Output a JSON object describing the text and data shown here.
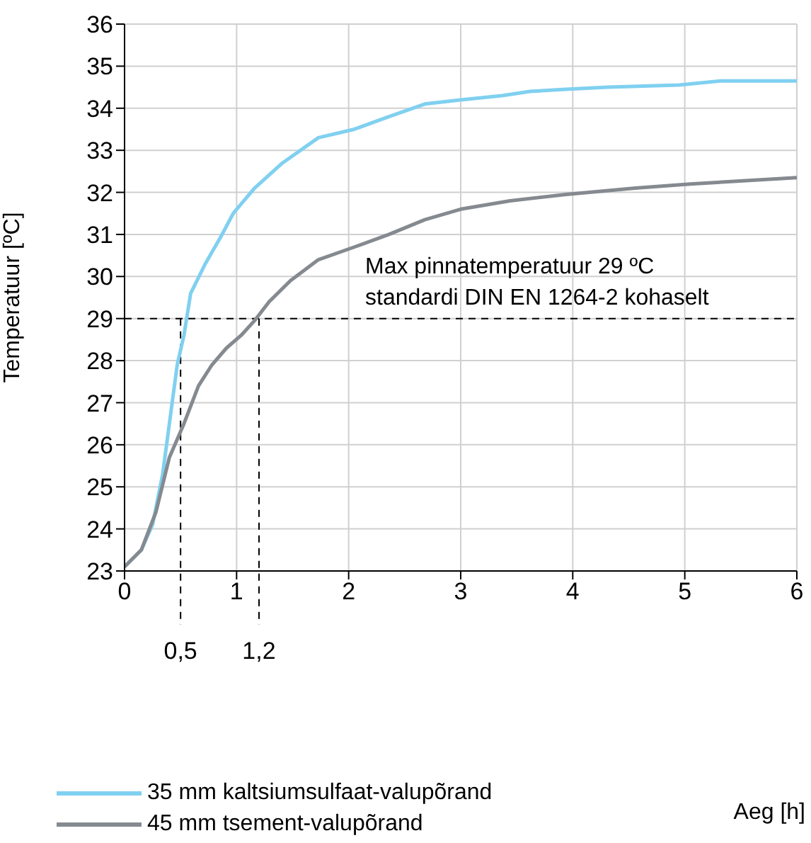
{
  "chart_data": {
    "type": "line",
    "annotations": [
      "Aeg [h]"
    ],
    "ylabel": "Temperatuur [ºC]",
    "xlim": [
      0,
      6
    ],
    "xticks": [
      0,
      1,
      2,
      3,
      4,
      5,
      6
    ],
    "ylim": [
      23,
      36
    ],
    "yticks": [
      23,
      24,
      25,
      26,
      27,
      28,
      29,
      30,
      31,
      32,
      33,
      34,
      35,
      36
    ],
    "grid": true,
    "legend": "bottom left",
    "marker": "none",
    "line_style": "solid",
    "series": [
      {
        "name": "35 mm kaltsiumsulfaat-valupõrand",
        "color": "#80d0f0",
        "x": [
          0,
          0.15,
          0.25,
          0.34,
          0.4,
          0.47,
          0.53,
          0.59,
          0.72,
          0.85,
          0.97,
          1.16,
          1.41,
          1.73,
          2.05,
          2.36,
          2.68,
          3.0,
          3.37,
          3.62,
          3.94,
          4.32,
          4.95,
          5.33,
          6
        ],
        "values": [
          23.1,
          23.5,
          24.1,
          25.3,
          26.5,
          27.9,
          28.6,
          29.6,
          30.3,
          30.9,
          31.5,
          32.1,
          32.7,
          33.3,
          33.5,
          33.8,
          34.1,
          34.2,
          34.3,
          34.4,
          34.45,
          34.5,
          34.55,
          34.65,
          34.65
        ]
      },
      {
        "name": "45 mm tsement-valupõrand",
        "color": "#858a90",
        "x": [
          0,
          0.15,
          0.28,
          0.4,
          0.53,
          0.66,
          0.78,
          0.91,
          1.04,
          1.16,
          1.29,
          1.48,
          1.73,
          2.05,
          2.36,
          2.68,
          3.0,
          3.44,
          3.94,
          4.56,
          5.05,
          6
        ],
        "values": [
          23.1,
          23.5,
          24.4,
          25.7,
          26.5,
          27.4,
          27.9,
          28.3,
          28.6,
          28.95,
          29.4,
          29.9,
          30.4,
          30.7,
          31.0,
          31.35,
          31.6,
          31.8,
          31.95,
          32.1,
          32.2,
          32.35
        ]
      }
    ],
    "ref_lines": [
      {
        "axis": "y",
        "value": 29,
        "label": "Max pinnatemperatuur 29 ºC\nstandardi DIN EN 1264-2 kohaselt",
        "line_style": "dashed",
        "color": "#000000"
      },
      {
        "axis": "x",
        "value": 0.5,
        "label": "0,5",
        "line_style": "dashed",
        "color": "#000000"
      },
      {
        "axis": "x",
        "value": 1.2,
        "label": "1,2",
        "line_style": "dashed",
        "color": "#000000"
      }
    ]
  }
}
